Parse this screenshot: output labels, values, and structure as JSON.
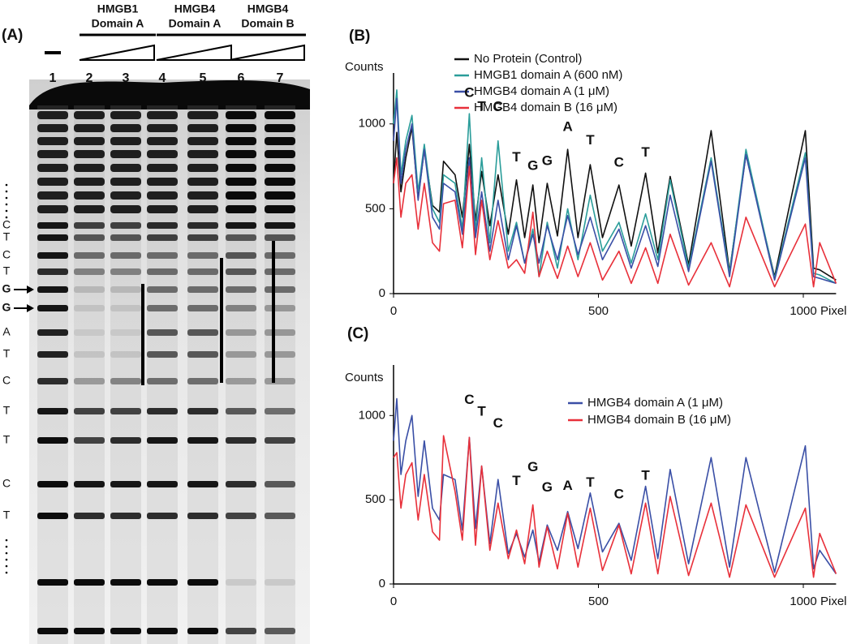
{
  "panel_a": {
    "label": "(A)",
    "groups": [
      {
        "line1": "HMGB1",
        "line2": "Domain A"
      },
      {
        "line1": "HMGB4",
        "line2": "Domain A"
      },
      {
        "line1": "HMGB4",
        "line2": "Domain B"
      }
    ],
    "lanes": [
      "1",
      "2",
      "3",
      "4",
      "5",
      "6",
      "7"
    ],
    "sequence": [
      "C",
      "T",
      "C",
      "T",
      "G",
      "G",
      "A",
      "T",
      "C",
      "T",
      "T",
      "C",
      "T"
    ],
    "highlighted": [
      4,
      5
    ],
    "highlight_color": "#e8302a"
  },
  "chart_data": [
    {
      "type": "line",
      "label": "(B)",
      "y_label": "Counts",
      "x_label": "Pixel",
      "x": [
        0,
        8,
        18,
        30,
        45,
        60,
        75,
        95,
        112,
        122,
        150,
        168,
        185,
        200,
        215,
        235,
        255,
        280,
        300,
        320,
        340,
        355,
        375,
        400,
        425,
        450,
        480,
        510,
        550,
        580,
        615,
        645,
        675,
        720,
        775,
        820,
        860,
        930,
        1005,
        1025,
        1040,
        1080
      ],
      "series": [
        {
          "name": "No Protein (Control)",
          "color": "#111111",
          "values": [
            650,
            950,
            600,
            800,
            980,
            560,
            850,
            520,
            480,
            780,
            700,
            450,
            880,
            430,
            720,
            400,
            700,
            350,
            670,
            330,
            640,
            300,
            650,
            340,
            850,
            330,
            760,
            330,
            640,
            280,
            710,
            240,
            690,
            170,
            960,
            130,
            820,
            100,
            960,
            150,
            140,
            80
          ]
        },
        {
          "name": "HMGB1 domain A (600 nM)",
          "color": "#2a9d9a",
          "values": [
            1000,
            1200,
            700,
            900,
            1050,
            600,
            880,
            500,
            420,
            700,
            650,
            380,
            1060,
            360,
            800,
            300,
            900,
            250,
            420,
            180,
            380,
            100,
            420,
            150,
            500,
            200,
            580,
            250,
            420,
            180,
            470,
            200,
            670,
            150,
            800,
            120,
            850,
            90,
            830,
            120,
            110,
            60
          ]
        },
        {
          "name": "HMGB4 domain A (1 μM)",
          "color": "#3a4fa6",
          "values": [
            900,
            1150,
            650,
            850,
            1000,
            550,
            850,
            450,
            380,
            650,
            600,
            350,
            800,
            330,
            600,
            250,
            550,
            200,
            400,
            180,
            350,
            180,
            400,
            200,
            460,
            230,
            450,
            200,
            380,
            150,
            400,
            160,
            580,
            130,
            780,
            100,
            820,
            80,
            800,
            100,
            90,
            60
          ]
        },
        {
          "name": "HMGB4 domain B (16 μM)",
          "color": "#e8303a",
          "values": [
            650,
            800,
            450,
            650,
            700,
            380,
            650,
            300,
            250,
            530,
            550,
            270,
            750,
            230,
            550,
            200,
            430,
            150,
            200,
            120,
            480,
            100,
            250,
            90,
            280,
            100,
            300,
            80,
            250,
            60,
            270,
            60,
            350,
            50,
            300,
            40,
            450,
            40,
            410,
            40,
            300,
            60
          ]
        }
      ],
      "xlim": [
        0,
        1080
      ],
      "ylim": [
        0,
        1300
      ],
      "xticks": [
        0,
        500,
        1000
      ],
      "yticks": [
        0,
        500,
        1000
      ],
      "annotations": [
        {
          "text": "C",
          "x": 185,
          "y": 1180
        },
        {
          "text": "T",
          "x": 215,
          "y": 1100
        },
        {
          "text": "C",
          "x": 255,
          "y": 1100
        },
        {
          "text": "T",
          "x": 300,
          "y": 800
        },
        {
          "text": "G",
          "x": 340,
          "y": 750
        },
        {
          "text": "G",
          "x": 375,
          "y": 780
        },
        {
          "text": "A",
          "x": 425,
          "y": 980
        },
        {
          "text": "T",
          "x": 480,
          "y": 900
        },
        {
          "text": "C",
          "x": 550,
          "y": 770
        },
        {
          "text": "T",
          "x": 615,
          "y": 830
        }
      ]
    },
    {
      "type": "line",
      "label": "(C)",
      "y_label": "Counts",
      "x_label": "Pixel",
      "x": [
        0,
        8,
        18,
        30,
        45,
        60,
        75,
        95,
        112,
        122,
        150,
        168,
        185,
        200,
        215,
        235,
        255,
        280,
        300,
        320,
        340,
        355,
        375,
        400,
        425,
        450,
        480,
        510,
        550,
        580,
        615,
        645,
        675,
        720,
        775,
        820,
        860,
        930,
        1005,
        1025,
        1040,
        1080
      ],
      "series": [
        {
          "name": "HMGB4 domain A (1 μM)",
          "color": "#3a4fa6",
          "values": [
            850,
            1100,
            650,
            850,
            1000,
            520,
            850,
            450,
            380,
            650,
            620,
            320,
            870,
            330,
            700,
            240,
            620,
            180,
            300,
            160,
            320,
            130,
            350,
            200,
            430,
            210,
            540,
            190,
            360,
            140,
            580,
            150,
            680,
            120,
            750,
            100,
            750,
            70,
            820,
            90,
            200,
            60
          ]
        },
        {
          "name": "HMGB4 domain B (16 μM)",
          "color": "#e8303a",
          "values": [
            750,
            780,
            450,
            650,
            720,
            380,
            650,
            310,
            260,
            880,
            550,
            260,
            870,
            230,
            700,
            200,
            480,
            150,
            320,
            120,
            470,
            100,
            340,
            90,
            420,
            100,
            450,
            80,
            350,
            60,
            480,
            60,
            520,
            50,
            480,
            40,
            470,
            40,
            450,
            40,
            300,
            60
          ]
        }
      ],
      "xlim": [
        0,
        1080
      ],
      "ylim": [
        0,
        1300
      ],
      "xticks": [
        0,
        500,
        1000
      ],
      "yticks": [
        0,
        500,
        1000
      ],
      "annotations": [
        {
          "text": "C",
          "x": 185,
          "y": 1090
        },
        {
          "text": "T",
          "x": 215,
          "y": 1020
        },
        {
          "text": "C",
          "x": 255,
          "y": 950
        },
        {
          "text": "T",
          "x": 300,
          "y": 610
        },
        {
          "text": "G",
          "x": 340,
          "y": 690
        },
        {
          "text": "G",
          "x": 375,
          "y": 570
        },
        {
          "text": "A",
          "x": 425,
          "y": 580
        },
        {
          "text": "T",
          "x": 480,
          "y": 600
        },
        {
          "text": "C",
          "x": 550,
          "y": 530
        },
        {
          "text": "T",
          "x": 615,
          "y": 640
        }
      ]
    }
  ]
}
